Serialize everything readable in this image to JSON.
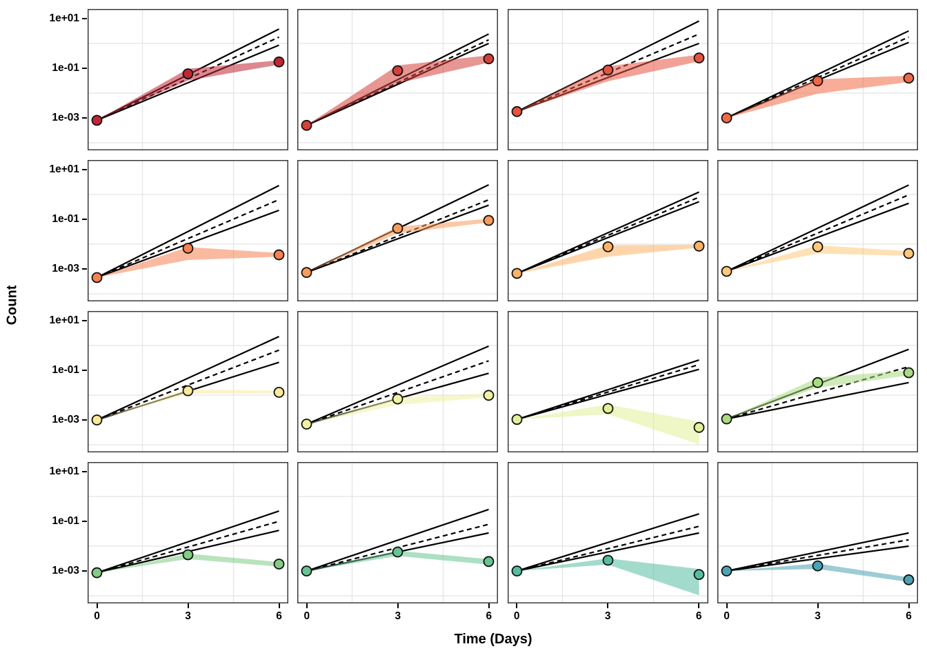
{
  "chart_data": {
    "type": "line",
    "title": "",
    "xlabel": "Time (Days)",
    "ylabel": "Count",
    "x": [
      0,
      3,
      6
    ],
    "x_ticks": [
      "0",
      "3",
      "6"
    ],
    "x_tick_values": [
      0,
      3,
      6
    ],
    "y_ticks": [
      "1e+01",
      "1e-01",
      "1e-03"
    ],
    "y_tick_values": [
      10,
      0.1,
      0.001
    ],
    "y_scale": "log10",
    "ylim_log10": [
      -4.3,
      1.4
    ],
    "grid": "minor-only",
    "grid_minor_y_values": [
      1,
      0.01,
      0.0001
    ],
    "grid_minor_x_values": [
      1.5,
      4.5
    ],
    "legend": "none",
    "facet_grid": {
      "rows": 4,
      "cols": 4
    },
    "reference_fan": "three black lines from the day-0 point to day 6: solid upper bound, dashed midline, solid lower bound",
    "facets": [
      {
        "row": 1,
        "col": 1,
        "color": "#C02634",
        "points": [
          0.0008,
          0.06,
          0.18
        ],
        "ribbon_hi": [
          0.0008,
          0.095,
          0.21
        ],
        "ribbon_lo": [
          0.0008,
          0.032,
          0.14
        ],
        "fan_upper_day6": 3.8,
        "fan_mid_day6": 1.8,
        "fan_lower_day6": 0.85
      },
      {
        "row": 1,
        "col": 2,
        "color": "#D6403B",
        "points": [
          0.0005,
          0.08,
          0.24
        ],
        "ribbon_hi": [
          0.0005,
          0.13,
          0.33
        ],
        "ribbon_lo": [
          0.0005,
          0.025,
          0.17
        ],
        "fan_upper_day6": 2.4,
        "fan_mid_day6": 1.4,
        "fan_lower_day6": 1.0
      },
      {
        "row": 1,
        "col": 3,
        "color": "#E65440",
        "points": [
          0.0018,
          0.085,
          0.26
        ],
        "ribbon_hi": [
          0.0018,
          0.12,
          0.35
        ],
        "ribbon_lo": [
          0.0018,
          0.03,
          0.19
        ],
        "fan_upper_day6": 8.0,
        "fan_mid_day6": 2.4,
        "fan_lower_day6": 1.0
      },
      {
        "row": 1,
        "col": 4,
        "color": "#F06944",
        "points": [
          0.001,
          0.031,
          0.04
        ],
        "ribbon_hi": [
          0.001,
          0.036,
          0.05
        ],
        "ribbon_lo": [
          0.001,
          0.0095,
          0.028
        ],
        "fan_upper_day6": 3.2,
        "fan_mid_day6": 1.8,
        "fan_lower_day6": 1.1
      },
      {
        "row": 2,
        "col": 1,
        "color": "#F58250",
        "points": [
          0.00045,
          0.0068,
          0.0037
        ],
        "ribbon_hi": [
          0.00045,
          0.0076,
          0.0044
        ],
        "ribbon_lo": [
          0.00045,
          0.0023,
          0.0031
        ],
        "fan_upper_day6": 2.3,
        "fan_mid_day6": 0.62,
        "fan_lower_day6": 0.23
      },
      {
        "row": 2,
        "col": 2,
        "color": "#FA9B59",
        "points": [
          0.00072,
          0.043,
          0.09
        ],
        "ribbon_hi": [
          0.00072,
          0.05,
          0.105
        ],
        "ribbon_lo": [
          0.00072,
          0.027,
          0.075
        ],
        "fan_upper_day6": 2.45,
        "fan_mid_day6": 0.61,
        "fan_lower_day6": 0.37
      },
      {
        "row": 2,
        "col": 3,
        "color": "#FDB266",
        "points": [
          0.00066,
          0.0078,
          0.0083
        ],
        "ribbon_hi": [
          0.00066,
          0.009,
          0.0095
        ],
        "ribbon_lo": [
          0.00066,
          0.0031,
          0.0072
        ],
        "fan_upper_day6": 1.25,
        "fan_mid_day6": 0.78,
        "fan_lower_day6": 0.51
      },
      {
        "row": 2,
        "col": 4,
        "color": "#FDC878",
        "points": [
          0.0008,
          0.0078,
          0.0042
        ],
        "ribbon_hi": [
          0.0008,
          0.009,
          0.0052
        ],
        "ribbon_lo": [
          0.0008,
          0.0042,
          0.0034
        ],
        "fan_upper_day6": 2.4,
        "fan_mid_day6": 0.96,
        "fan_lower_day6": 0.44
      },
      {
        "row": 3,
        "col": 1,
        "color": "#F9E999",
        "points": [
          0.001,
          0.015,
          0.013
        ],
        "ribbon_hi": [
          0.001,
          0.017,
          0.015
        ],
        "ribbon_lo": [
          0.001,
          0.0115,
          0.0115
        ],
        "fan_upper_day6": 2.3,
        "fan_mid_day6": 0.65,
        "fan_lower_day6": 0.21
      },
      {
        "row": 3,
        "col": 2,
        "color": "#EFF2A2",
        "points": [
          0.00068,
          0.007,
          0.0098
        ],
        "ribbon_hi": [
          0.00068,
          0.008,
          0.0115
        ],
        "ribbon_lo": [
          0.00068,
          0.004,
          0.0082
        ],
        "fan_upper_day6": 0.94,
        "fan_mid_day6": 0.24,
        "fan_lower_day6": 0.076
      },
      {
        "row": 3,
        "col": 3,
        "color": "#E0F096",
        "points": [
          0.00105,
          0.0029,
          0.0005
        ],
        "ribbon_hi": [
          0.00105,
          0.0042,
          0.00085
        ],
        "ribbon_lo": [
          0.00105,
          0.0017,
          0.000105
        ],
        "fan_upper_day6": 0.26,
        "fan_mid_day6": 0.17,
        "fan_lower_day6": 0.11
      },
      {
        "row": 3,
        "col": 4,
        "color": "#A9DB80",
        "points": [
          0.0011,
          0.032,
          0.08
        ],
        "ribbon_hi": [
          0.0011,
          0.05,
          0.1
        ],
        "ribbon_lo": [
          0.0011,
          0.02,
          0.062
        ],
        "fan_upper_day6": 0.7,
        "fan_mid_day6": 0.14,
        "fan_lower_day6": 0.032
      },
      {
        "row": 4,
        "col": 1,
        "color": "#82CC85",
        "points": [
          0.00085,
          0.0045,
          0.0019
        ],
        "ribbon_hi": [
          0.00085,
          0.005,
          0.0023
        ],
        "ribbon_lo": [
          0.00085,
          0.003,
          0.0015
        ],
        "fan_upper_day6": 0.26,
        "fan_mid_day6": 0.1,
        "fan_lower_day6": 0.043
      },
      {
        "row": 4,
        "col": 2,
        "color": "#68C492",
        "points": [
          0.001,
          0.0058,
          0.0024
        ],
        "ribbon_hi": [
          0.001,
          0.0065,
          0.003
        ],
        "ribbon_lo": [
          0.001,
          0.004,
          0.0018
        ],
        "fan_upper_day6": 0.3,
        "fan_mid_day6": 0.076,
        "fan_lower_day6": 0.034
      },
      {
        "row": 4,
        "col": 3,
        "color": "#55BEA0",
        "points": [
          0.001,
          0.0027,
          0.00072
        ],
        "ribbon_hi": [
          0.001,
          0.0032,
          0.0012
        ],
        "ribbon_lo": [
          0.001,
          0.0018,
          0.000105
        ],
        "fan_upper_day6": 0.2,
        "fan_mid_day6": 0.063,
        "fan_lower_day6": 0.034
      },
      {
        "row": 4,
        "col": 4,
        "color": "#4CA3B3",
        "points": [
          0.001,
          0.0016,
          0.00044
        ],
        "ribbon_hi": [
          0.001,
          0.002,
          0.00055
        ],
        "ribbon_lo": [
          0.001,
          0.0012,
          0.00036
        ],
        "fan_upper_day6": 0.034,
        "fan_mid_day6": 0.018,
        "fan_lower_day6": 0.01
      }
    ],
    "style": {
      "ribbon_alpha": 0.55,
      "point_radius_px": 7,
      "point_stroke_color": "#111111",
      "fan_line_color": "#000000",
      "grid_color": "#E4E4E4",
      "panel_border_color": "#3A3A3A",
      "background": "#FFFFFF"
    }
  }
}
